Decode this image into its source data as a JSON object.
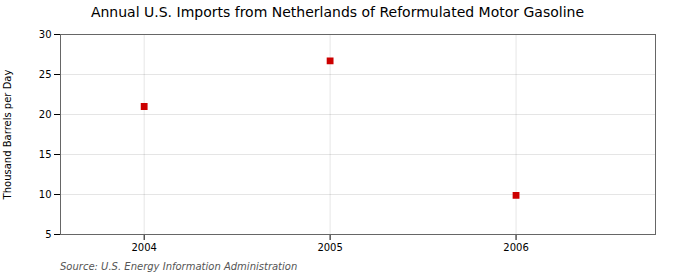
{
  "chart_data": {
    "type": "scatter",
    "title": "Annual U.S. Imports from Netherlands of Reformulated Motor Gasoline",
    "ylabel": "Thousand Barrels per Day",
    "source": "Source: U.S. Energy Information Administration",
    "x": [
      2004,
      2005,
      2006
    ],
    "values": [
      21.0,
      26.7,
      9.9
    ],
    "color": "#cc0000",
    "marker": "square",
    "xlim": [
      2003.55,
      2006.75
    ],
    "xticks": [
      2004,
      2005,
      2006
    ],
    "ylim": [
      5,
      30
    ],
    "yticks": [
      5,
      10,
      15,
      20,
      25,
      30
    ],
    "grid": true
  }
}
